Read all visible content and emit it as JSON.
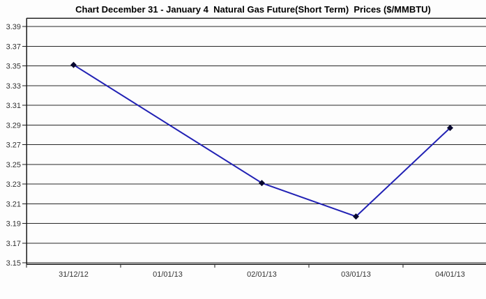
{
  "chart": {
    "title": "Chart December 31 - January 4  Natural Gas Future(Short Term)  Prices ($/MMBTU)"
  },
  "chart_data": {
    "type": "line",
    "title": "Chart December 31 - January 4  Natural Gas Future(Short Term)  Prices ($/MMBTU)",
    "categories": [
      "31/12/12",
      "01/01/13",
      "02/01/13",
      "03/01/13",
      "04/01/13"
    ],
    "series": [
      {
        "name": "Natural Gas Future (Short Term) Price",
        "values": [
          3.351,
          null,
          3.231,
          3.197,
          3.287
        ]
      }
    ],
    "xlabel": "",
    "ylabel": "",
    "ylim": [
      3.15,
      3.39
    ],
    "ytick_step": 0.02,
    "y_tick_labels": [
      "3.39",
      "3.37",
      "3.35",
      "3.33",
      "3.31",
      "3.29",
      "3.27",
      "3.25",
      "3.23",
      "3.21",
      "3.19",
      "3.17",
      "3.15"
    ],
    "grid": "horizontal",
    "legend": "none",
    "marker_shape": "diamond",
    "colors": {
      "line": "#2121b4",
      "marker": "#07072e",
      "grid": "#262626",
      "axis": "#1a1a1a",
      "tick_text": "#333333",
      "title_text": "#000000",
      "background": "#fdfdfd"
    }
  }
}
